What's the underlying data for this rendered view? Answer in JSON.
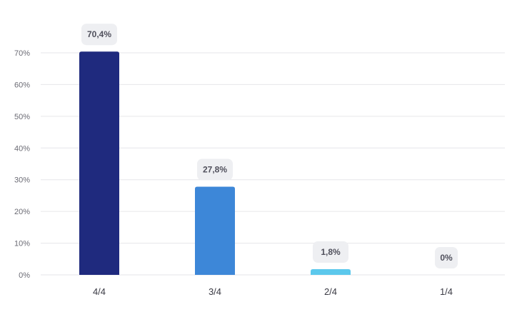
{
  "chart_data": {
    "type": "bar",
    "title": "",
    "xlabel": "",
    "ylabel": "",
    "categories": [
      "4/4",
      "3/4",
      "2/4",
      "1/4"
    ],
    "values": [
      70.4,
      27.8,
      1.8,
      0
    ],
    "data_labels": [
      "70,4%",
      "27,8%",
      "1,8%",
      "0%"
    ],
    "y_ticks": [
      0,
      10,
      20,
      30,
      40,
      50,
      60,
      70
    ],
    "y_tick_labels": [
      "0%",
      "10%",
      "20%",
      "30%",
      "40%",
      "50%",
      "60%",
      "70%"
    ],
    "ylim": [
      0,
      70
    ],
    "grid": true,
    "legend": "none",
    "colors": [
      "#1f2a7e",
      "#3d87d8",
      "#5cc8ec",
      "#5cc8ec"
    ],
    "grid_color": "#e6e6ea",
    "label_bg_color": "#eeeff2"
  }
}
